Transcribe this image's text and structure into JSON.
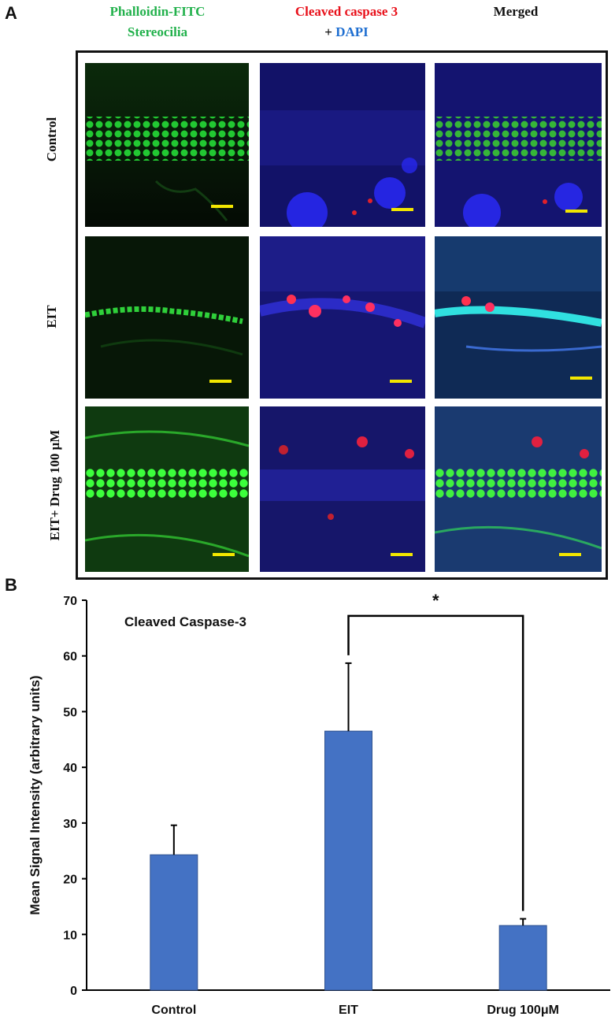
{
  "panel_a": {
    "letter": "A",
    "headers": {
      "col1_line1": "Phalloidin-FITC",
      "col1_line2": "Stereocilia",
      "col2_line1": "Cleaved caspase 3",
      "col2_plus": "+ ",
      "col2_dapi": "DAPI",
      "col3": "Merged"
    },
    "rows": [
      {
        "label": "Control"
      },
      {
        "label": "EIT"
      },
      {
        "label": "EIT+ Drug 100 μM"
      }
    ]
  },
  "panel_b": {
    "letter": "B"
  },
  "chart_data": {
    "type": "bar",
    "title": "Cleaved Caspase-3",
    "ylabel": "Mean Signal Intensity (arbitrary units)",
    "xlabel": "",
    "categories": [
      "Control",
      "EIT",
      "Drug 100μM"
    ],
    "values": [
      24.3,
      46.5,
      11.6
    ],
    "error": [
      5.3,
      12.2,
      1.2
    ],
    "ylim": [
      0,
      70
    ],
    "yticks": [
      0,
      10,
      20,
      30,
      40,
      50,
      60,
      70
    ],
    "significance": {
      "from": "EIT",
      "to": "Drug 100μM",
      "label": "*"
    },
    "bar_color": "#4472c4",
    "grid": false
  }
}
